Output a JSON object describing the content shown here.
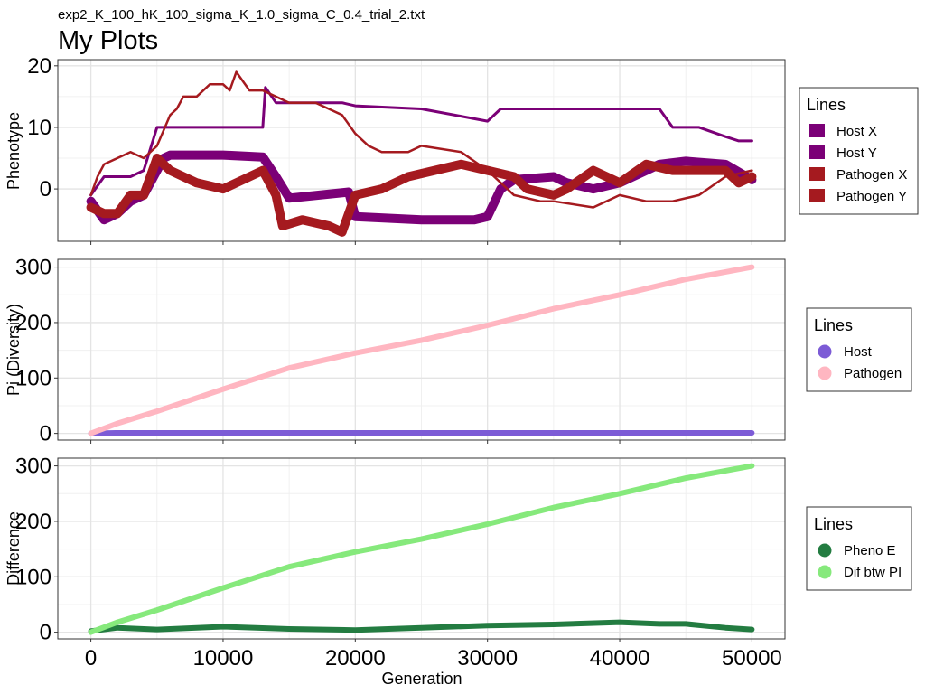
{
  "header": {
    "subtitle": "exp2_K_100_hK_100_sigma_K_1.0_sigma_C_0.4_trial_2.txt",
    "title": "My Plots"
  },
  "chart_data": [
    {
      "type": "line",
      "ylabel": "Phenotype",
      "xlim": [
        -2500,
        52500
      ],
      "ylim": [
        -8.5,
        21
      ],
      "yticks": [
        0,
        10,
        20
      ],
      "grid": true,
      "legend": {
        "title": "Lines",
        "position": "right",
        "key": "square",
        "entries": [
          {
            "label": "Host X",
            "color": "#7B0077"
          },
          {
            "label": "Host Y",
            "color": "#7B0077"
          },
          {
            "label": "Pathogen X",
            "color": "#A51A1F"
          },
          {
            "label": "Pathogen Y",
            "color": "#A51A1F"
          }
        ]
      },
      "series": [
        {
          "name": "Host X",
          "color": "#7B0077",
          "width": 3,
          "x": [
            0,
            1000,
            2000,
            3000,
            4000,
            5000,
            5800,
            6000,
            9000,
            13000,
            13200,
            14000,
            19000,
            20000,
            25000,
            30000,
            31000,
            35000,
            40000,
            43000,
            44000,
            46000,
            48000,
            49000,
            50000
          ],
          "y": [
            -1,
            2,
            2,
            2,
            3,
            10,
            10,
            10,
            10,
            10,
            16.5,
            14,
            14,
            13.5,
            13,
            11,
            13,
            13,
            13,
            13,
            10,
            10,
            8.5,
            7.8,
            7.8
          ]
        },
        {
          "name": "Host Y",
          "color": "#7B0077",
          "width": 10,
          "x": [
            0,
            1000,
            2000,
            3000,
            4000,
            5500,
            6000,
            10000,
            13000,
            14000,
            15000,
            19500,
            20000,
            25000,
            29000,
            30000,
            31000,
            32000,
            35000,
            36000,
            38000,
            40000,
            41000,
            43000,
            45000,
            48000,
            50000
          ],
          "y": [
            -2,
            -5,
            -4,
            -2,
            -1,
            5,
            5.5,
            5.5,
            5.2,
            2,
            -1.5,
            -0.5,
            -4.5,
            -5,
            -5,
            -4.5,
            0,
            1.5,
            2,
            1,
            0,
            1,
            2,
            4,
            4.5,
            4,
            1.5
          ]
        },
        {
          "name": "Pathogen X",
          "color": "#A51A1F",
          "width": 10,
          "x": [
            0,
            1000,
            2000,
            3000,
            4000,
            5000,
            6000,
            8000,
            10000,
            12000,
            13000,
            14000,
            14500,
            16000,
            18000,
            19000,
            20000,
            22000,
            24000,
            26000,
            28000,
            30000,
            32000,
            33000,
            35000,
            36000,
            38000,
            40000,
            42000,
            44000,
            46000,
            48000,
            49000,
            50000
          ],
          "y": [
            -3,
            -4,
            -4,
            -1,
            -1,
            5,
            3,
            1,
            0,
            2,
            3,
            -1,
            -6,
            -5,
            -6,
            -7,
            -1,
            0,
            2,
            3,
            4,
            3,
            2,
            0,
            -1,
            0,
            3,
            1,
            4,
            3,
            3,
            3,
            1,
            2
          ]
        },
        {
          "name": "Pathogen Y",
          "color": "#A51A1F",
          "width": 2.5,
          "x": [
            0,
            500,
            1000,
            2000,
            3000,
            4000,
            5000,
            6000,
            6500,
            7000,
            8000,
            9000,
            10000,
            10500,
            11000,
            12000,
            13000,
            14000,
            15000,
            17000,
            18000,
            19000,
            20000,
            21000,
            22000,
            24000,
            25000,
            28000,
            30000,
            32000,
            34000,
            35000,
            38000,
            40000,
            42000,
            44000,
            46000,
            48000,
            50000
          ],
          "y": [
            -1,
            2,
            4,
            5,
            6,
            5,
            7,
            12,
            13,
            15,
            15,
            17,
            17,
            16,
            19,
            16,
            16,
            15,
            14,
            14,
            13,
            12,
            9,
            7,
            6,
            6,
            7,
            6,
            3,
            -1,
            -2,
            -2,
            -3,
            -1,
            -2,
            -2,
            -1,
            2,
            3
          ]
        }
      ]
    },
    {
      "type": "line",
      "ylabel": "Pi (Diversity)",
      "xlim": [
        -2500,
        52500
      ],
      "ylim": [
        -12,
        314
      ],
      "yticks": [
        0,
        100,
        200,
        300
      ],
      "grid": true,
      "legend": {
        "title": "Lines",
        "position": "right",
        "key": "circle",
        "entries": [
          {
            "label": "Host",
            "color": "#7C5BD6"
          },
          {
            "label": "Pathogen",
            "color": "#FFB6C1"
          }
        ]
      },
      "series": [
        {
          "name": "Host",
          "color": "#7C5BD6",
          "width": 6,
          "x": [
            0,
            2000,
            5000,
            10000,
            20000,
            30000,
            40000,
            50000
          ],
          "y": [
            0,
            1,
            1,
            1,
            1,
            1,
            1,
            1
          ]
        },
        {
          "name": "Pathogen",
          "color": "#FFB6C1",
          "width": 6,
          "x": [
            0,
            2000,
            5000,
            10000,
            15000,
            20000,
            25000,
            30000,
            35000,
            40000,
            45000,
            50000
          ],
          "y": [
            0,
            18,
            40,
            80,
            118,
            145,
            168,
            195,
            225,
            250,
            278,
            300
          ]
        }
      ]
    },
    {
      "type": "line",
      "ylabel": "Difference",
      "xlabel": "Generation",
      "xlim": [
        -2500,
        52500
      ],
      "ylim": [
        -12,
        314
      ],
      "yticks": [
        0,
        100,
        200,
        300
      ],
      "xticks": [
        0,
        10000,
        20000,
        30000,
        40000,
        50000
      ],
      "xticklabels": [
        "0",
        "10000",
        "20000",
        "30000",
        "40000",
        "50000"
      ],
      "grid": true,
      "legend": {
        "title": "Lines",
        "position": "right",
        "key": "circle",
        "entries": [
          {
            "label": "Pheno E",
            "color": "#237C41"
          },
          {
            "label": "Dif btw PI",
            "color": "#86E97C"
          }
        ]
      },
      "series": [
        {
          "name": "Pheno E",
          "color": "#237C41",
          "width": 6,
          "x": [
            0,
            2000,
            5000,
            10000,
            15000,
            20000,
            25000,
            30000,
            35000,
            40000,
            43000,
            45000,
            48000,
            50000
          ],
          "y": [
            2,
            8,
            5,
            10,
            6,
            4,
            8,
            12,
            14,
            18,
            15,
            15,
            8,
            5
          ]
        },
        {
          "name": "Dif btw PI",
          "color": "#86E97C",
          "width": 6,
          "x": [
            0,
            2000,
            5000,
            10000,
            15000,
            20000,
            25000,
            30000,
            35000,
            40000,
            45000,
            50000
          ],
          "y": [
            0,
            18,
            40,
            80,
            118,
            145,
            168,
            195,
            225,
            250,
            278,
            300
          ]
        }
      ]
    }
  ]
}
